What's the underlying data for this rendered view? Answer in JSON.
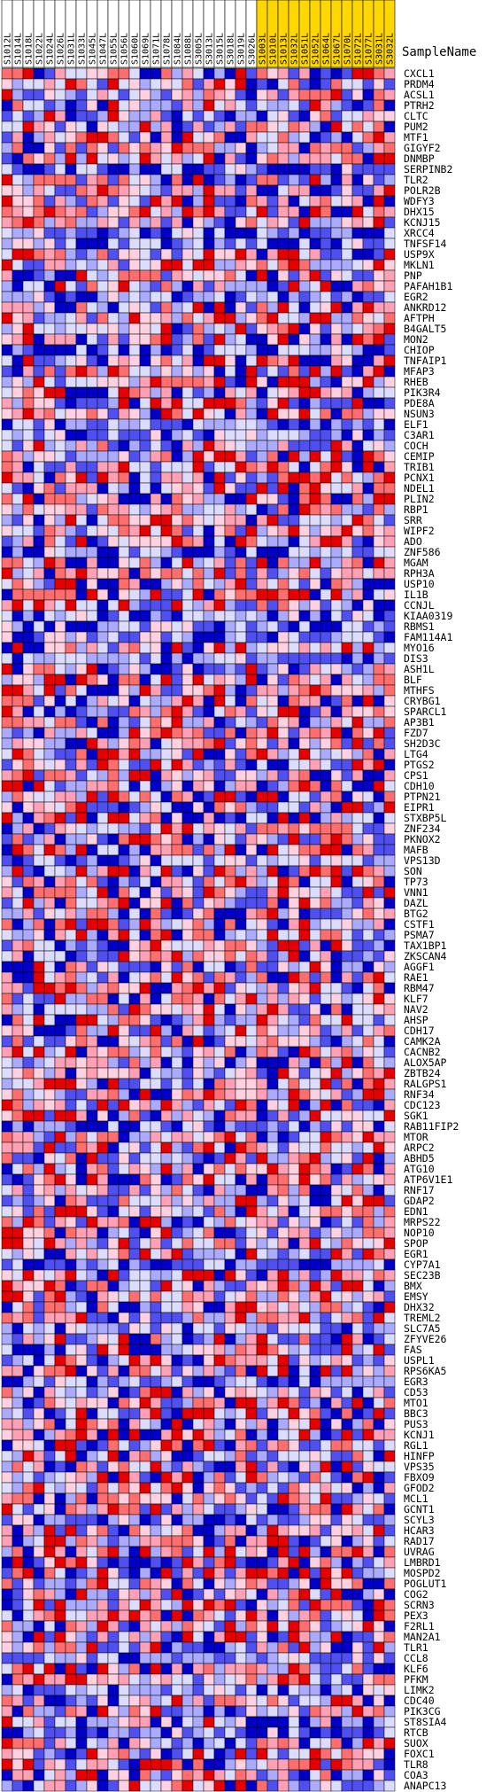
{
  "chart_data": {
    "type": "heatmap",
    "title": "",
    "column_header_label": "SampleName",
    "columns": [
      {
        "name": "S1012L",
        "group": "white"
      },
      {
        "name": "S1014L",
        "group": "white"
      },
      {
        "name": "S1018L",
        "group": "white"
      },
      {
        "name": "S1022L",
        "group": "white"
      },
      {
        "name": "S1024L",
        "group": "white"
      },
      {
        "name": "S1026L",
        "group": "white"
      },
      {
        "name": "S1031L",
        "group": "white"
      },
      {
        "name": "S1033L",
        "group": "white"
      },
      {
        "name": "S1045L",
        "group": "white"
      },
      {
        "name": "S1047L",
        "group": "white"
      },
      {
        "name": "S1055L",
        "group": "white"
      },
      {
        "name": "S1056L",
        "group": "white"
      },
      {
        "name": "S1060L",
        "group": "white"
      },
      {
        "name": "S1069L",
        "group": "white"
      },
      {
        "name": "S1071L",
        "group": "white"
      },
      {
        "name": "S1078L",
        "group": "white"
      },
      {
        "name": "S1084L",
        "group": "white"
      },
      {
        "name": "S1088L",
        "group": "white"
      },
      {
        "name": "S3005L",
        "group": "white"
      },
      {
        "name": "S3013L",
        "group": "white"
      },
      {
        "name": "S3015L",
        "group": "white"
      },
      {
        "name": "S3018L",
        "group": "white"
      },
      {
        "name": "S3019L",
        "group": "white"
      },
      {
        "name": "S3026L",
        "group": "white"
      },
      {
        "name": "S1003L",
        "group": "yellow"
      },
      {
        "name": "S1010L",
        "group": "yellow"
      },
      {
        "name": "S1013L",
        "group": "yellow"
      },
      {
        "name": "S1032L",
        "group": "yellow"
      },
      {
        "name": "S1051L",
        "group": "yellow"
      },
      {
        "name": "S1052L",
        "group": "yellow"
      },
      {
        "name": "S1064L",
        "group": "yellow"
      },
      {
        "name": "S1067L",
        "group": "yellow"
      },
      {
        "name": "S1070L",
        "group": "yellow"
      },
      {
        "name": "S1072L",
        "group": "yellow"
      },
      {
        "name": "S1077L",
        "group": "yellow"
      },
      {
        "name": "S3031L",
        "group": "yellow"
      },
      {
        "name": "S3032L",
        "group": "yellow"
      }
    ],
    "rows": [
      "CXCL1",
      "PRDM4",
      "ACSL1",
      "PTRH2",
      "CLTC",
      "PUM2",
      "MTF1",
      "GIGYF2",
      "DNMBP",
      "SERPINB2",
      "TLR2",
      "POLR2B",
      "WDFY3",
      "DHX15",
      "KCNJ15",
      "XRCC4",
      "TNFSF14",
      "USP9X",
      "MKLN1",
      "PNP",
      "PAFAH1B1",
      "EGR2",
      "ANKRD12",
      "AFTPH",
      "B4GALT5",
      "MON2",
      "CHIOP",
      "TNFAIP1",
      "MFAP3",
      "RHEB",
      "PIK3R4",
      "PDE8A",
      "NSUN3",
      "ELF1",
      "C3AR1",
      "COCH",
      "CEMIP",
      "TRIB1",
      "PCNX1",
      "NDEL1",
      "PLIN2",
      "RBP1",
      "SRR",
      "WIPF2",
      "ADO",
      "ZNF586",
      "MGAM",
      "RPH3A",
      "USP10",
      "IL1B",
      "CCNJL",
      "KIAA0319",
      "RBMS1",
      "FAM114A1",
      "MYO16",
      "DIS3",
      "ASH1L",
      "BLF",
      "MTHFS",
      "CRYBG1",
      "SPARCL1",
      "AP3B1",
      "FZD7",
      "SH2D3C",
      "LTG4",
      "PTGS2",
      "CPS1",
      "CDH10",
      "PTPN21",
      "EIPR1",
      "STXBP5L",
      "ZNF234",
      "PKNOX2",
      "MAFB",
      "VPS13D",
      "SON",
      "TP73",
      "VNN1",
      "DAZL",
      "BTG2",
      "CSTF1",
      "PSMA7",
      "TAX1BP1",
      "ZKSCAN4",
      "AGGF1",
      "RAE1",
      "RBM47",
      "KLF7",
      "NAV2",
      "AHSP",
      "CDH17",
      "CAMK2A",
      "CACNB2",
      "ALOX5AP",
      "ZBTB24",
      "RALGPS1",
      "RNF34",
      "CDC123",
      "SGK1",
      "RAB11FIP2",
      "MTOR",
      "ARPC2",
      "ABHD5",
      "ATG10",
      "ATP6V1E1",
      "RNF17",
      "GDAP2",
      "EDN1",
      "MRPS22",
      "NOP10",
      "SPOP",
      "EGR1",
      "CYP7A1",
      "SEC23B",
      "BMX",
      "EMSY",
      "DHX32",
      "TREML2",
      "SLC7A5",
      "ZFYVE26",
      "FAS",
      "USPL1",
      "RPS6KA5",
      "EGR3",
      "CD53",
      "MTO1",
      "BBC3",
      "PUS3",
      "KCNJ1",
      "RGL1",
      "HINFP",
      "VPS35",
      "FBXO9",
      "GFOD2",
      "MCL1",
      "GCNT1",
      "SCYL3",
      "HCAR3",
      "RAD17",
      "UVRAG",
      "LMBRD1",
      "MOSPD2",
      "POGLUT1",
      "COG2",
      "SCRN3",
      "PEX3",
      "F2RL1",
      "MAN2A1",
      "TLR1",
      "CCL8",
      "KLF6",
      "PFKM",
      "LIMK2",
      "CDC40",
      "PIK3CG",
      "ST8SIA4",
      "RTCB",
      "SUOX",
      "FOXC1",
      "TLR8",
      "COA3",
      "ANAPC13"
    ],
    "legend": "none",
    "grid": true
  }
}
